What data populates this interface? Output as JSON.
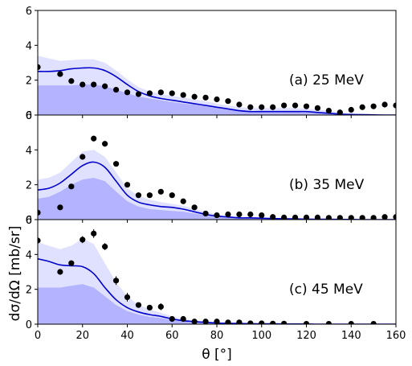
{
  "chart_data": {
    "type": "scatter",
    "xlabel": "θ [°]",
    "ylabel": "dσ/dΩ   [mb/sr]",
    "xlim": [
      0,
      160
    ],
    "ylim": [
      0,
      6
    ],
    "x_ticks": [
      0,
      20,
      40,
      60,
      80,
      100,
      120,
      140,
      160
    ],
    "y_ticks": [
      0,
      2,
      4,
      6
    ],
    "panels": [
      {
        "label": "(a) 25 MeV",
        "points": {
          "x": [
            0,
            10,
            15,
            20,
            25,
            30,
            35,
            40,
            45,
            50,
            55,
            60,
            65,
            70,
            75,
            80,
            85,
            90,
            95,
            100,
            105,
            110,
            115,
            120,
            125,
            130,
            135,
            140,
            145,
            150,
            155,
            160
          ],
          "y": [
            2.75,
            2.35,
            1.95,
            1.75,
            1.75,
            1.65,
            1.45,
            1.3,
            1.2,
            1.25,
            1.3,
            1.25,
            1.15,
            1.05,
            1.0,
            0.9,
            0.8,
            0.6,
            0.45,
            0.45,
            0.45,
            0.55,
            0.55,
            0.5,
            0.4,
            0.25,
            0.15,
            0.3,
            0.45,
            0.5,
            0.6,
            0.55
          ]
        },
        "curve": {
          "x": [
            0,
            5,
            10,
            15,
            20,
            25,
            30,
            35,
            40,
            45,
            50,
            55,
            60,
            65,
            70,
            75,
            80,
            85,
            90,
            95,
            100,
            105,
            110,
            115,
            120,
            125,
            130,
            135,
            140,
            145,
            150,
            155,
            160
          ],
          "y": [
            2.5,
            2.5,
            2.55,
            2.65,
            2.7,
            2.7,
            2.55,
            2.2,
            1.75,
            1.35,
            1.1,
            0.95,
            0.85,
            0.75,
            0.65,
            0.55,
            0.45,
            0.35,
            0.25,
            0.2,
            0.2,
            0.2,
            0.2,
            0.2,
            0.2,
            0.15,
            0.1,
            0.05,
            0.03,
            0.02,
            0.01,
            0.0,
            0.0
          ]
        },
        "band_outer_upper": [
          3.4,
          3.25,
          3.1,
          3.15,
          3.2,
          3.2,
          3.0,
          2.55,
          2.05,
          1.6,
          1.35,
          1.2,
          1.1,
          1.0,
          0.9,
          0.8,
          0.65,
          0.55,
          0.45,
          0.4,
          0.4,
          0.4,
          0.4,
          0.4,
          0.35,
          0.3,
          0.25,
          0.15,
          0.1,
          0.05,
          0.03,
          0.02,
          0.0
        ],
        "band_inner_upper": [
          1.7,
          1.7,
          1.7,
          1.7,
          1.75,
          1.75,
          1.65,
          1.45,
          1.25,
          1.05,
          0.95,
          0.85,
          0.75,
          0.65,
          0.6,
          0.5,
          0.4,
          0.3,
          0.25,
          0.2,
          0.2,
          0.2,
          0.2,
          0.2,
          0.15,
          0.12,
          0.1,
          0.05,
          0.03,
          0.02,
          0.01,
          0.0,
          0.0
        ]
      },
      {
        "label": "(b) 35 MeV",
        "points": {
          "x": [
            0,
            10,
            15,
            20,
            25,
            30,
            35,
            40,
            45,
            50,
            55,
            60,
            65,
            70,
            75,
            80,
            85,
            90,
            95,
            100,
            105,
            110,
            115,
            120,
            125,
            130,
            135,
            140,
            145,
            150,
            155,
            160
          ],
          "y": [
            0.4,
            0.7,
            1.9,
            3.6,
            4.65,
            4.35,
            3.2,
            2.0,
            1.4,
            1.4,
            1.6,
            1.4,
            1.05,
            0.7,
            0.35,
            0.25,
            0.3,
            0.3,
            0.3,
            0.25,
            0.15,
            0.12,
            0.12,
            0.12,
            0.12,
            0.1,
            0.1,
            0.1,
            0.1,
            0.1,
            0.15,
            0.15
          ]
        },
        "curve": {
          "x": [
            0,
            5,
            10,
            15,
            20,
            25,
            30,
            35,
            40,
            45,
            50,
            55,
            60,
            65,
            70,
            75,
            80,
            85,
            90,
            95,
            100,
            105,
            110,
            115,
            120,
            125,
            130,
            135,
            140,
            145,
            150,
            155,
            160
          ],
          "y": [
            1.7,
            1.8,
            2.1,
            2.6,
            3.1,
            3.3,
            3.0,
            2.2,
            1.4,
            1.0,
            0.85,
            0.75,
            0.7,
            0.6,
            0.45,
            0.3,
            0.2,
            0.15,
            0.1,
            0.1,
            0.08,
            0.06,
            0.05,
            0.04,
            0.03,
            0.02,
            0.02,
            0.01,
            0.01,
            0.0,
            0.0,
            0.0,
            0.0
          ]
        },
        "band_outer_upper": [
          2.3,
          2.4,
          2.7,
          3.3,
          3.9,
          4.0,
          3.6,
          2.7,
          1.8,
          1.35,
          1.15,
          1.0,
          0.9,
          0.8,
          0.6,
          0.45,
          0.3,
          0.22,
          0.15,
          0.12,
          0.1,
          0.08,
          0.06,
          0.05,
          0.04,
          0.03,
          0.02,
          0.02,
          0.01,
          0.01,
          0.0,
          0.0,
          0.0
        ],
        "band_inner_upper": [
          1.2,
          1.3,
          1.6,
          2.0,
          2.3,
          2.4,
          2.2,
          1.6,
          1.05,
          0.75,
          0.6,
          0.55,
          0.5,
          0.45,
          0.35,
          0.25,
          0.15,
          0.12,
          0.08,
          0.07,
          0.06,
          0.05,
          0.04,
          0.03,
          0.02,
          0.02,
          0.01,
          0.01,
          0.0,
          0.0,
          0.0,
          0.0,
          0.0
        ]
      },
      {
        "label": "(c) 45 MeV",
        "points": {
          "x": [
            0,
            10,
            15,
            20,
            25,
            30,
            35,
            40,
            45,
            50,
            55,
            60,
            65,
            70,
            75,
            80,
            85,
            90,
            95,
            100,
            105,
            110,
            120,
            130,
            140,
            150
          ],
          "y": [
            4.8,
            3.0,
            3.5,
            4.85,
            5.2,
            4.45,
            2.5,
            1.55,
            1.1,
            0.95,
            1.0,
            0.3,
            0.3,
            0.15,
            0.15,
            0.15,
            0.1,
            0.1,
            0.05,
            0.05,
            0.03,
            0.03,
            0.02,
            0.02,
            0.02,
            0.02
          ],
          "yerr": [
            0.15,
            0.15,
            0.15,
            0.2,
            0.25,
            0.2,
            0.25,
            0.25,
            0.1,
            0.1,
            0.2,
            0.1,
            0.05,
            0.05,
            0.05,
            0.05,
            0.03,
            0.03,
            0.02,
            0.02,
            0.02,
            0.02,
            0.01,
            0.01,
            0.01,
            0.01
          ]
        },
        "curve": {
          "x": [
            0,
            5,
            10,
            15,
            20,
            25,
            30,
            35,
            40,
            45,
            50,
            55,
            60,
            65,
            70,
            75,
            80,
            85,
            90,
            95,
            100,
            105,
            110,
            115,
            120,
            125,
            130,
            135,
            140,
            145,
            150,
            155,
            160
          ],
          "y": [
            3.75,
            3.6,
            3.4,
            3.35,
            3.3,
            2.9,
            2.1,
            1.4,
            0.95,
            0.7,
            0.55,
            0.45,
            0.3,
            0.2,
            0.15,
            0.1,
            0.07,
            0.05,
            0.04,
            0.03,
            0.02,
            0.02,
            0.01,
            0.01,
            0.01,
            0.0,
            0.0,
            0.0,
            0.0,
            0.0,
            0.0,
            0.0,
            0.0
          ]
        },
        "band_outer_upper": [
          4.7,
          4.5,
          4.3,
          4.5,
          4.9,
          4.6,
          3.5,
          2.4,
          1.6,
          1.1,
          0.85,
          0.65,
          0.45,
          0.3,
          0.2,
          0.15,
          0.1,
          0.07,
          0.05,
          0.04,
          0.03,
          0.02,
          0.02,
          0.01,
          0.01,
          0.01,
          0.0,
          0.0,
          0.0,
          0.0,
          0.0,
          0.0,
          0.0
        ],
        "band_inner_upper": [
          2.1,
          2.1,
          2.1,
          2.2,
          2.3,
          2.1,
          1.6,
          1.1,
          0.75,
          0.55,
          0.42,
          0.35,
          0.25,
          0.17,
          0.12,
          0.08,
          0.05,
          0.04,
          0.03,
          0.02,
          0.02,
          0.01,
          0.01,
          0.01,
          0.0,
          0.0,
          0.0,
          0.0,
          0.0,
          0.0,
          0.0,
          0.0,
          0.0
        ]
      }
    ],
    "colors": {
      "band_outer": "#e0e0ff",
      "band_inner": "#b3b3ff",
      "curve": "#0000cc",
      "points": "#000000"
    }
  }
}
